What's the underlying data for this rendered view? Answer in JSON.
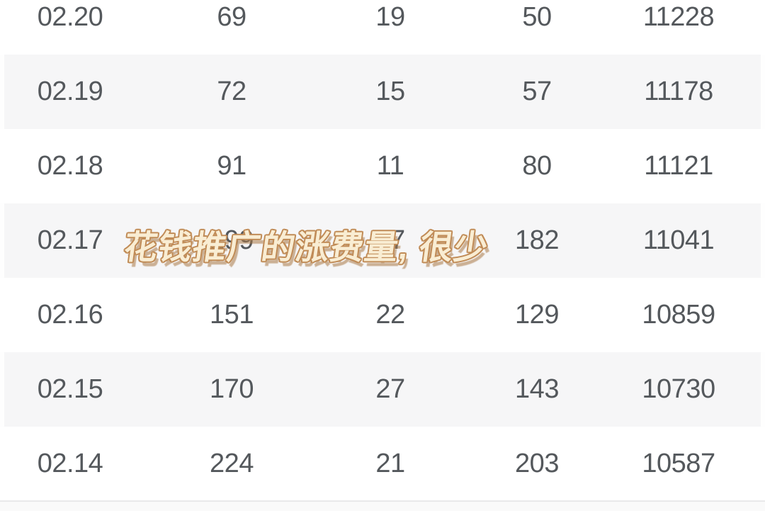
{
  "table": {
    "rows": [
      [
        "02.20",
        "69",
        "19",
        "50",
        "11228"
      ],
      [
        "02.19",
        "72",
        "15",
        "57",
        "11178"
      ],
      [
        "02.18",
        "91",
        "11",
        "80",
        "11121"
      ],
      [
        "02.17",
        "199",
        "17",
        "182",
        "11041"
      ],
      [
        "02.16",
        "151",
        "22",
        "129",
        "10859"
      ],
      [
        "02.15",
        "170",
        "27",
        "143",
        "10730"
      ],
      [
        "02.14",
        "224",
        "21",
        "203",
        "10587"
      ]
    ]
  },
  "watermark": {
    "text": "花钱推广的涨费量, 很少",
    "fill_color": "#f9edd3",
    "outline_color": "#c08b56"
  },
  "colors": {
    "text": "#54585c",
    "row_bg": "#ffffff",
    "row_alt_bg": "#f6f6f7",
    "divider": "#e9e9ea",
    "footer_bg": "#fafafa"
  }
}
